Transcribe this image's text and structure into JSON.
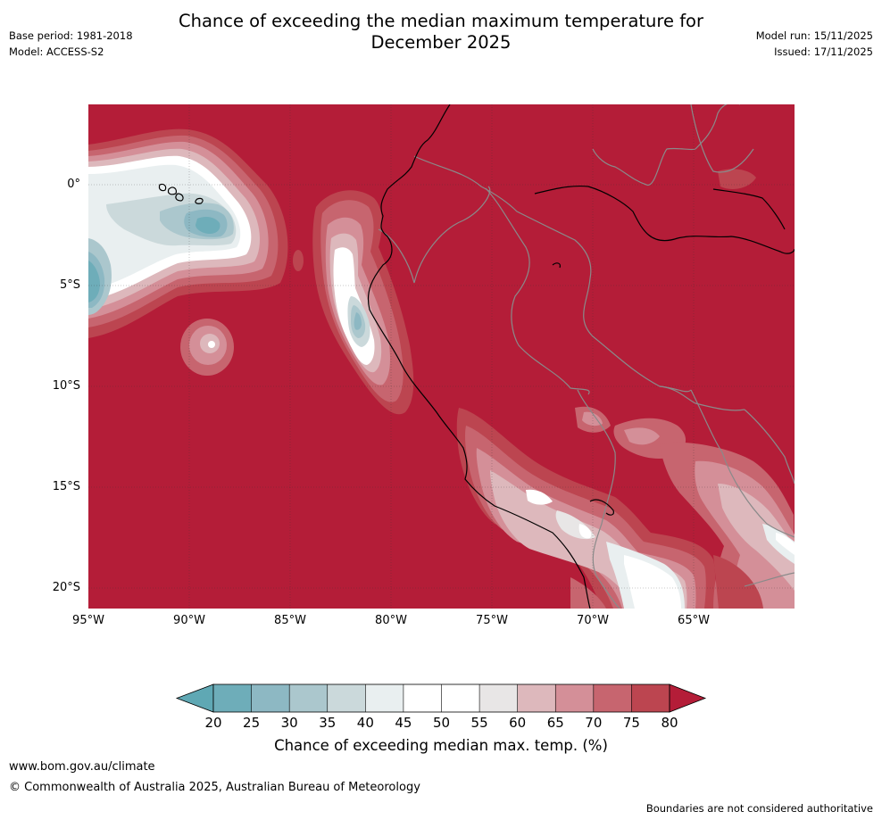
{
  "header": {
    "title_line1": "Chance of exceeding the median maximum temperature for",
    "title_line2": "December 2025",
    "base_period": "Base period: 1981-2018",
    "model": "Model: ACCESS-S2",
    "model_run": "Model run: 15/11/2025",
    "issued": "Issued: 17/11/2025"
  },
  "map": {
    "lat_labels": [
      "0°",
      "5°S",
      "10°S",
      "15°S",
      "20°S"
    ],
    "lon_labels": [
      "95°W",
      "90°W",
      "85°W",
      "80°W",
      "75°W",
      "70°W",
      "65°W"
    ]
  },
  "colorbar": {
    "title": "Chance of exceeding median max. temp. (%)",
    "ticks": [
      "20",
      "25",
      "30",
      "35",
      "40",
      "45",
      "50",
      "55",
      "60",
      "65",
      "70",
      "75",
      "80"
    ],
    "colors": {
      "below_20": "#5fa8b4",
      "c20_25": "#6eadb9",
      "c25_30": "#8db8c3",
      "c30_35": "#abc7cd",
      "c35_40": "#cbd9db",
      "c40_45": "#e9eff0",
      "c45_50": "#ffffff",
      "c50_55": "#ffffff",
      "c55_60": "#e8e6e6",
      "c60_65": "#ddb8bc",
      "c65_70": "#d48f98",
      "c70_75": "#c7656f",
      "c75_80": "#bc4550",
      "above_80": "#b41d38"
    }
  },
  "footer": {
    "website": "www.bom.gov.au/climate",
    "copyright": "© Commonwealth of Australia 2025, Australian Bureau of Meteorology",
    "disclaimer": "Boundaries are not considered authoritative"
  }
}
